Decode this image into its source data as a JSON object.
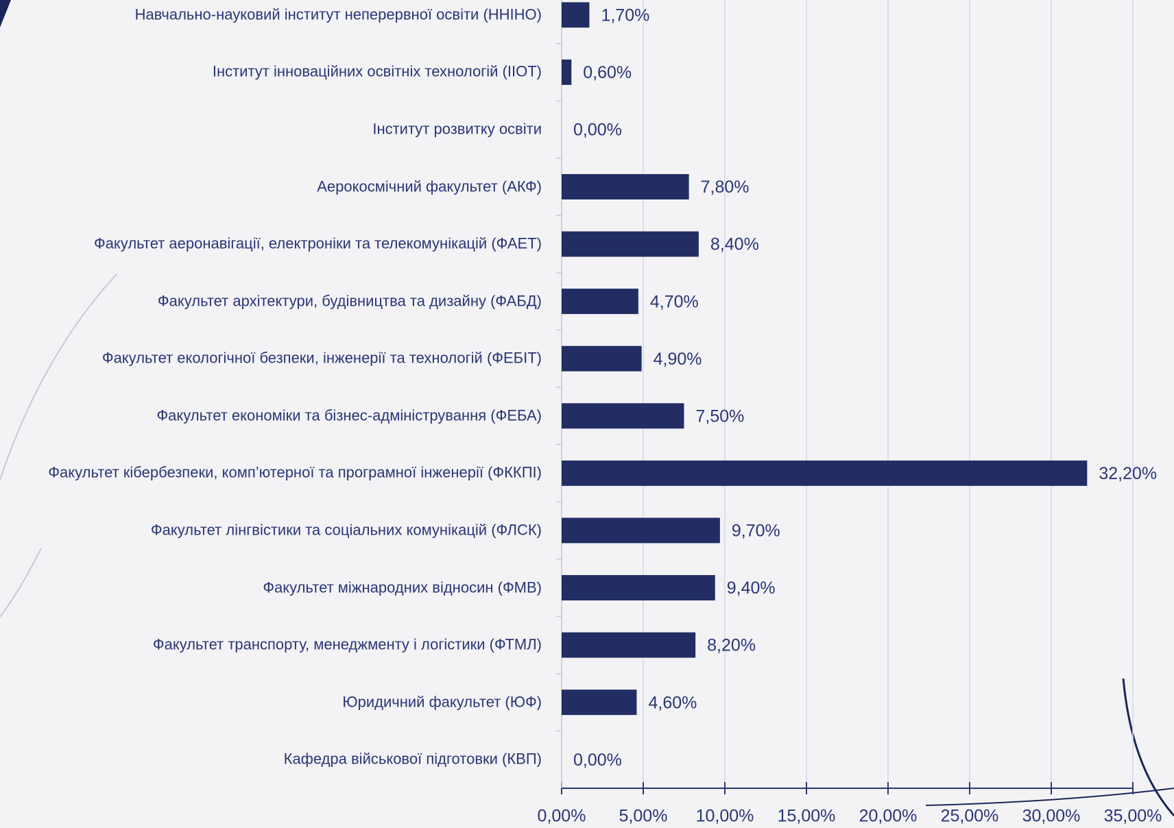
{
  "chart_data": {
    "type": "barh",
    "categories": [
      "Навчально-науковий інститут неперервної освіти (ННІНО)",
      "Інститут інноваційних освітніх технологій (ІІОТ)",
      "Інститут розвитку освіти",
      "Аерокосмічний факультет (АКФ)",
      "Факультет аеронавігації, електроніки та телекомунікацій (ФАЕТ)",
      "Факультет архітектури, будівництва та дизайну (ФАБД)",
      "Факультет екологічної безпеки, інженерії та технологій (ФЕБІТ)",
      "Факультет економіки та бізнес-адміністрування (ФЕБА)",
      "Факультет кібербезпеки, комп’ютерної та програмної інженерії (ФККПІ)",
      "Факультет лінгвістики та соціальних комунікацій (ФЛСК)",
      "Факультет міжнародних відносин (ФМВ)",
      "Факультет транспорту, менеджменту і логістики (ФТМЛ)",
      "Юридичний факультет (ЮФ)",
      "Кафедра військової підготовки (КВП)"
    ],
    "values": [
      1.7,
      0.6,
      0,
      7.8,
      8.4,
      4.7,
      4.9,
      7.5,
      32.2,
      9.7,
      9.4,
      8.2,
      4.6,
      0
    ],
    "value_labels": [
      "1,70%",
      "0,60%",
      "0,00%",
      "7,80%",
      "8,40%",
      "4,70%",
      "4,90%",
      "7,50%",
      "32,20%",
      "9,70%",
      "9,40%",
      "8,20%",
      "4,60%",
      "0,00%"
    ],
    "color": "#212d63",
    "xlim": [
      0,
      35
    ],
    "xticks": [
      {
        "value": 0,
        "label": "0,00%"
      },
      {
        "value": 5,
        "label": "5,00%"
      },
      {
        "value": 10,
        "label": "10,00%"
      },
      {
        "value": 15,
        "label": "15,00%"
      },
      {
        "value": 20,
        "label": "20,00%"
      },
      {
        "value": 25,
        "label": "25,00%"
      },
      {
        "value": 30,
        "label": "30,00%"
      },
      {
        "value": 35,
        "label": "35,00%"
      }
    ],
    "grid": true
  }
}
